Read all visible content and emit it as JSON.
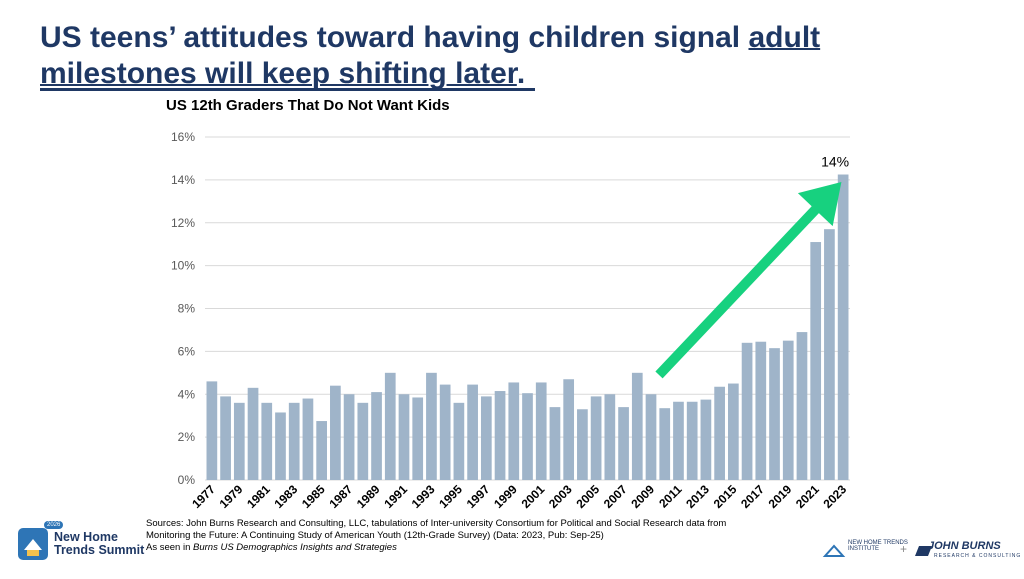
{
  "headline": {
    "part1": "US teens’ attitudes toward having children signal ",
    "part2": "adult milestones will keep shifting later",
    "part3": "."
  },
  "chart_data": {
    "type": "bar",
    "title": "US 12th Graders That Do Not Want Kids",
    "xlabel": "",
    "ylabel": "",
    "ylim": [
      0,
      16
    ],
    "yticks": [
      "0%",
      "2%",
      "4%",
      "6%",
      "8%",
      "10%",
      "12%",
      "14%",
      "16%"
    ],
    "grid": true,
    "bar_color": "#9fb4c9",
    "categories": [
      "1977",
      "1978",
      "1979",
      "1980",
      "1981",
      "1982",
      "1983",
      "1984",
      "1985",
      "1986",
      "1987",
      "1988",
      "1989",
      "1990",
      "1991",
      "1992",
      "1993",
      "1994",
      "1995",
      "1996",
      "1997",
      "1998",
      "1999",
      "2000",
      "2001",
      "2002",
      "2003",
      "2004",
      "2005",
      "2006",
      "2007",
      "2008",
      "2009",
      "2010",
      "2011",
      "2012",
      "2013",
      "2014",
      "2015",
      "2016",
      "2017",
      "2018",
      "2019",
      "2020",
      "2021",
      "2022",
      "2023"
    ],
    "xtick_labels": [
      "1977",
      "1979",
      "1981",
      "1983",
      "1985",
      "1987",
      "1989",
      "1991",
      "1993",
      "1995",
      "1997",
      "1999",
      "2001",
      "2003",
      "2005",
      "2007",
      "2009",
      "2011",
      "2013",
      "2015",
      "2017",
      "2019",
      "2021",
      "2023"
    ],
    "values": [
      4.6,
      3.9,
      3.6,
      4.3,
      3.6,
      3.15,
      3.6,
      3.8,
      2.75,
      4.4,
      4.0,
      3.6,
      4.1,
      5.0,
      4.0,
      3.85,
      5.0,
      4.45,
      3.6,
      4.45,
      3.9,
      4.15,
      4.55,
      4.05,
      4.55,
      3.4,
      4.7,
      3.3,
      3.9,
      4.0,
      3.4,
      5.0,
      4.0,
      3.35,
      3.65,
      3.65,
      3.75,
      4.35,
      4.5,
      6.4,
      6.45,
      6.15,
      6.5,
      6.9,
      11.1,
      11.7,
      14.25
    ],
    "annotation": {
      "label": "14%",
      "category": "2023"
    },
    "arrow": {
      "from": "2009",
      "to": "2022",
      "color": "#17d17f"
    }
  },
  "sources": {
    "line1": "Sources: John Burns Research and Consulting, LLC, tabulations of Inter-university Consortium for Political and Social Research data from Monitoring the Future: A Continuing Study of American Youth (12th-Grade Survey) (Data: 2023, Pub: Sep-25)",
    "prefix": "As seen in ",
    "italic": "Burns US Demographics Insights and Strategies"
  },
  "logos": {
    "summit_badge": "2026",
    "summit_line1": "New Home",
    "summit_line2": "Trends Summit",
    "nht_line1": "NEW HOME TRENDS",
    "nht_line2": "INSTITUTE",
    "plus": "+",
    "jb_name": "JOHN BURNS",
    "jb_sub": "RESEARCH & CONSULTING",
    "icon": "house-icon",
    "jb_icon": "jb-mark-icon"
  }
}
